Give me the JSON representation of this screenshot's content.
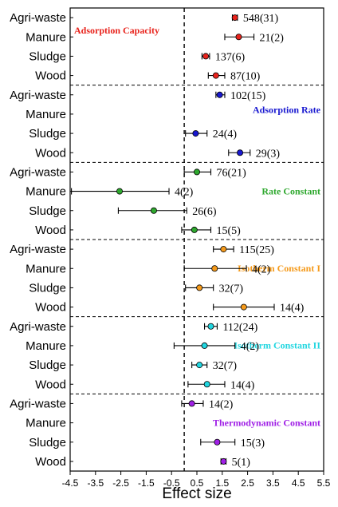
{
  "chart_data": {
    "type": "forest",
    "xlabel": "Effect size",
    "xlim": [
      -4.5,
      5.5
    ],
    "xticks": [
      -4.5,
      -3.5,
      -2.5,
      -1.5,
      -0.5,
      0.5,
      1.5,
      2.5,
      3.5,
      4.5,
      5.5
    ],
    "reference_line": 0,
    "categories": [
      "Agri-waste",
      "Manure",
      "Sludge",
      "Wood"
    ],
    "panels": [
      {
        "title": "Adsorption Capacity",
        "color": "#e8231c",
        "title_position": "top-left",
        "rows": [
          {
            "category": "Agri-waste",
            "estimate": 2.0,
            "lower": 1.9,
            "upper": 2.1,
            "label": "548(31)"
          },
          {
            "category": "Manure",
            "estimate": 2.15,
            "lower": 1.6,
            "upper": 2.75,
            "label": "21(2)"
          },
          {
            "category": "Sludge",
            "estimate": 0.85,
            "lower": 0.7,
            "upper": 1.0,
            "label": "137(6)"
          },
          {
            "category": "Wood",
            "estimate": 1.25,
            "lower": 0.95,
            "upper": 1.6,
            "label": "87(10)"
          }
        ]
      },
      {
        "title": "Adsorption Rate",
        "color": "#1818d0",
        "title_position": "top-right",
        "rows": [
          {
            "category": "Agri-waste",
            "estimate": 1.4,
            "lower": 1.25,
            "upper": 1.6,
            "label": "102(15)"
          },
          {
            "category": "Manure",
            "estimate": null,
            "lower": null,
            "upper": null,
            "label": ""
          },
          {
            "category": "Sludge",
            "estimate": 0.45,
            "lower": 0.05,
            "upper": 0.9,
            "label": "24(4)"
          },
          {
            "category": "Wood",
            "estimate": 2.2,
            "lower": 1.75,
            "upper": 2.6,
            "label": "29(3)"
          }
        ]
      },
      {
        "title": "Rate Constant",
        "color": "#2ea82e",
        "title_position": "right",
        "rows": [
          {
            "category": "Agri-waste",
            "estimate": 0.5,
            "lower": 0.0,
            "upper": 1.05,
            "label": "76(21)"
          },
          {
            "category": "Manure",
            "estimate": -2.55,
            "lower": -4.45,
            "upper": -0.6,
            "label": "4(2)"
          },
          {
            "category": "Sludge",
            "estimate": -1.2,
            "lower": -2.6,
            "upper": 0.1,
            "label": "26(6)"
          },
          {
            "category": "Wood",
            "estimate": 0.4,
            "lower": -0.1,
            "upper": 1.05,
            "label": "15(5)"
          }
        ]
      },
      {
        "title": "Isotherm Constant I",
        "color": "#f59a1b",
        "title_position": "right",
        "rows": [
          {
            "category": "Agri-waste",
            "estimate": 1.55,
            "lower": 1.15,
            "upper": 1.95,
            "label": "115(25)"
          },
          {
            "category": "Manure",
            "estimate": 1.2,
            "lower": 0.0,
            "upper": 2.45,
            "label": "4(2)"
          },
          {
            "category": "Sludge",
            "estimate": 0.6,
            "lower": 0.05,
            "upper": 1.15,
            "label": "32(7)"
          },
          {
            "category": "Wood",
            "estimate": 2.35,
            "lower": 1.15,
            "upper": 3.55,
            "label": "14(4)"
          }
        ]
      },
      {
        "title": "Isotherm Constant II",
        "color": "#21d6e0",
        "title_position": "right",
        "rows": [
          {
            "category": "Agri-waste",
            "estimate": 1.05,
            "lower": 0.8,
            "upper": 1.3,
            "label": "112(24)"
          },
          {
            "category": "Manure",
            "estimate": 0.8,
            "lower": -0.4,
            "upper": 2.0,
            "label": "4(2)"
          },
          {
            "category": "Sludge",
            "estimate": 0.6,
            "lower": 0.3,
            "upper": 0.9,
            "label": "32(7)"
          },
          {
            "category": "Wood",
            "estimate": 0.9,
            "lower": 0.15,
            "upper": 1.6,
            "label": "14(4)"
          }
        ]
      },
      {
        "title": "Thermodynamic Constant",
        "color": "#a020e6",
        "title_position": "right",
        "rows": [
          {
            "category": "Agri-waste",
            "estimate": 0.3,
            "lower": -0.1,
            "upper": 0.75,
            "label": "14(2)"
          },
          {
            "category": "Manure",
            "estimate": null,
            "lower": null,
            "upper": null,
            "label": ""
          },
          {
            "category": "Sludge",
            "estimate": 1.3,
            "lower": 0.65,
            "upper": 2.0,
            "label": "15(3)"
          },
          {
            "category": "Wood",
            "estimate": 1.55,
            "lower": 1.45,
            "upper": 1.65,
            "label": "5(1)"
          }
        ]
      }
    ]
  }
}
